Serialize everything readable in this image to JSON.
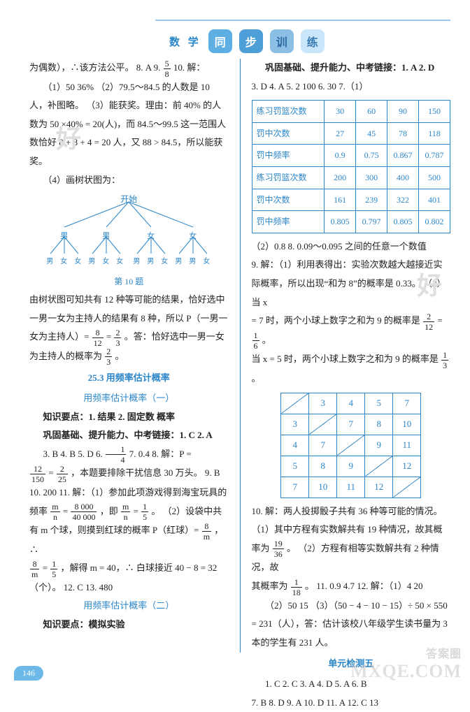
{
  "header": {
    "subject": "数 学",
    "badges": [
      "同",
      "步",
      "训",
      "练"
    ]
  },
  "left": {
    "p1_a": "为偶数），∴该方法公平。 8. A 9. ",
    "p1_frac_n": "5",
    "p1_frac_d": "8",
    "p1_b": " 10. 解：",
    "p2": "（1）50 36% （2）79.5～84.5 的人数是 10 人，补图略。 （3）能获奖。理由：前 40% 的人数为 50 ×40% = 20(人)，而 84.5～99.5 这一范围人数恰好 8 + 8 + 4 = 20 人，又 88 > 84.5，所以能获奖。",
    "p3": "（4）画树状图为：",
    "tree": {
      "root": "开始",
      "L1": [
        "男",
        "男",
        "女",
        "女"
      ],
      "L2": [
        "男",
        "女",
        "女",
        "男",
        "女",
        "女",
        "男",
        "男",
        "女",
        "男",
        "男",
        "女"
      ],
      "caption": "第 10 题"
    },
    "p4_a": "由树状图可知共有 12 种等可能的结果，恰好选中一男一女为主持人的结果有 8 种，所以 P（一男一女为主持人）= ",
    "p4_f1n": "8",
    "p4_f1d": "12",
    "p4_mid": " = ",
    "p4_f2n": "2",
    "p4_f2d": "3",
    "p4_b": "。答：恰好选中一男一女为主持人的概率为 ",
    "p4_f3n": "2",
    "p4_f3d": "3",
    "p4_c": "。",
    "sec_25_3": "25.3  用频率估计概率",
    "sub_25_3a": "用频率估计概率（一）",
    "kp_line": "知识要点：1. 结果  2. 固定数  概率",
    "gong_line": "巩固基础、提升能力、中考链接：1. C  2. A",
    "line3_a": "3. B  4. B  5. D  6. ",
    "line3_f_n": "1",
    "line3_f_d": "4",
    "line3_b": "  7. 0.4  8. 解：P =",
    "line4_f1n": "12",
    "line4_f1d": "150",
    "line4_mid": " = ",
    "line4_f2n": "2",
    "line4_f2d": "25",
    "line4_b": "，本题要排除干扰信息 30 万头。 9. B",
    "line5_a": "10. 200  11. 解：（1）参加此项游戏得到海宝玩具的频率 ",
    "line5_mn": "m",
    "line5_nd": "n",
    "line5_mid": " = ",
    "line5_f2n": "8 000",
    "line5_f2d": "40 000",
    "line5_mid2": "，即 ",
    "line5_f3n": "m",
    "line5_f3d": "n",
    "line5_eq": " = ",
    "line5_f4n": "1",
    "line5_f4d": "5",
    "line5_b": "。 （2）设袋中共",
    "line6_a": "有 m 个球，则摸到红球的概率 P（红球）= ",
    "line6_f1n": "8",
    "line6_f1d": "m",
    "line6_b": "，∴",
    "line7_f1n": "8",
    "line7_f1d": "m",
    "line7_mid": " = ",
    "line7_f2n": "1",
    "line7_f2d": "5",
    "line7_b": "，解得 m = 40，∴ 白球接近 40 − 8 = 32",
    "line8": "（个）。 12. C  13. 480",
    "sub_25_3b": "用频率估计概率（二）",
    "kp2": "知识要点：模拟实验"
  },
  "right": {
    "top": "巩固基础、提升能力、中考链接：1. A  2. D",
    "top2": "3. D  4. A  5. 2 100  6. 30  7.（1）",
    "table1": {
      "rows": [
        [
          "练习罚篮次数",
          "30",
          "60",
          "90",
          "150"
        ],
        [
          "罚中次数",
          "27",
          "45",
          "78",
          "118"
        ],
        [
          "罚中频率",
          "0.9",
          "0.75",
          "0.867",
          "0.787"
        ],
        [
          "练习罚篮次数",
          "200",
          "300",
          "400",
          "500"
        ],
        [
          "罚中次数",
          "161",
          "239",
          "322",
          "401"
        ],
        [
          "罚中频率",
          "0.805",
          "0.797",
          "0.805",
          "0.802"
        ]
      ]
    },
    "p2": "（2）0.8  8. 0.09～0.095 之间的任意一个数值",
    "p3_a": "9. 解：（1）利用表得出：实验次数越大越接近实际概率，所以出现“和为 8”的概率是 0.33。 （2）当 x",
    "p3_b": " = 7 时，两个小球上数字之和为 9 的概率是 ",
    "p3_f1n": "2",
    "p3_f1d": "12",
    "p3_mid": " = ",
    "p3_f2n": "1",
    "p3_f2d": "6",
    "p3_c": "。",
    "p3_d": "当 x = 5 时，两个小球上数字之和为 9 的概率是 ",
    "p3_f3n": "1",
    "p3_f3d": "3",
    "p3_e": "。",
    "grid": {
      "headers": [
        "",
        "3",
        "4",
        "5",
        "7"
      ],
      "rows": [
        [
          "3",
          "",
          "7",
          "8",
          "10"
        ],
        [
          "4",
          "7",
          "",
          "9",
          "11"
        ],
        [
          "5",
          "8",
          "9",
          "",
          "12"
        ],
        [
          "7",
          "10",
          "11",
          "12",
          ""
        ]
      ]
    },
    "p4": "10. 解：两人投掷骰子共有 36 种等可能的情况。",
    "p5_a": "（1）其中方程有实数解共有 19 种情况，故其概率为 ",
    "p5_f1n": "19",
    "p5_f1d": "36",
    "p5_b": "。 （2）方程有相等实数解共有 2 种情况，故",
    "p6_a": "其概率为 ",
    "p6_f1n": "1",
    "p6_f1d": "18",
    "p6_b": "。 11. 0.9  4.7  12. 解：（1）4  20",
    "p7": "（2）50  15 （3）（50 − 4 − 10 − 15）÷ 50 × 550 = 231（人），答：估计该校八年级学生读书量为 3 本的学生有 231 人。",
    "unit5": "单元检测五",
    "u5_l1": "1. C  2. C  3. A  4. D  5. A  6. B",
    "u5_l2": "7. B  8. D  9. A  10. D  11. A  12. C  13"
  },
  "page_number": "146",
  "watermark_top": "答案圈",
  "watermark": "MXQE.COM",
  "faint": "好"
}
